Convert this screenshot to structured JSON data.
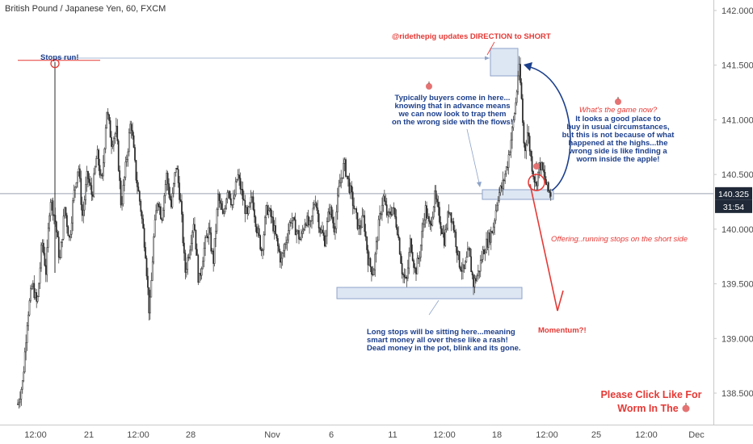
{
  "chart_data": {
    "type": "candlestick",
    "title": "British Pound / Japanese Yen, 60, FXCM",
    "y_ticks": [
      "142.000",
      "141.500",
      "141.000",
      "140.500",
      "140.000",
      "139.500",
      "139.000",
      "138.500"
    ],
    "y_tick_values": [
      142.0,
      141.5,
      141.0,
      140.5,
      140.0,
      139.5,
      139.0,
      138.5
    ],
    "ylim": [
      138.27,
      142.12
    ],
    "x_ticks": [
      "12:00",
      "21",
      "12:00",
      "28",
      "Nov",
      "6",
      "11",
      "12:00",
      "18",
      "12:00",
      "25",
      "12:00",
      "Dec"
    ],
    "price_label": "140.325",
    "price_value": 140.325,
    "countdown_label": "31:54",
    "path_points": [
      [
        0,
        138.4
      ],
      [
        6,
        138.6
      ],
      [
        12,
        139.2
      ],
      [
        18,
        139.5
      ],
      [
        24,
        139.3
      ],
      [
        30,
        139.9
      ],
      [
        35,
        139.6
      ],
      [
        40,
        140.3
      ],
      [
        46,
        140.1
      ],
      [
        52,
        139.7
      ],
      [
        58,
        140.2
      ],
      [
        64,
        139.9
      ],
      [
        69,
        140.3
      ],
      [
        75,
        140.6
      ],
      [
        80,
        140.1
      ],
      [
        86,
        140.5
      ],
      [
        92,
        140.3
      ],
      [
        98,
        140.7
      ],
      [
        104,
        140.4
      ],
      [
        110,
        141.1
      ],
      [
        116,
        140.8
      ],
      [
        122,
        140.9
      ],
      [
        128,
        140.2
      ],
      [
        134,
        140.6
      ],
      [
        140,
        141.0
      ],
      [
        146,
        140.5
      ],
      [
        152,
        140.2
      ],
      [
        158,
        139.8
      ],
      [
        163,
        139.2
      ],
      [
        168,
        139.9
      ],
      [
        173,
        140.3
      ],
      [
        178,
        140.1
      ],
      [
        184,
        140.5
      ],
      [
        190,
        140.2
      ],
      [
        196,
        140.6
      ],
      [
        202,
        140.2
      ],
      [
        207,
        139.6
      ],
      [
        212,
        139.8
      ],
      [
        218,
        140.1
      ],
      [
        224,
        139.5
      ],
      [
        230,
        139.8
      ],
      [
        236,
        140.0
      ],
      [
        242,
        139.7
      ],
      [
        248,
        140.3
      ],
      [
        254,
        140.1
      ],
      [
        260,
        140.4
      ],
      [
        266,
        140.2
      ],
      [
        272,
        140.5
      ],
      [
        278,
        140.3
      ],
      [
        284,
        140.1
      ],
      [
        290,
        140.3
      ],
      [
        296,
        140.0
      ],
      [
        302,
        139.8
      ],
      [
        308,
        140.2
      ],
      [
        314,
        140.1
      ],
      [
        320,
        139.9
      ],
      [
        326,
        139.7
      ],
      [
        332,
        139.9
      ],
      [
        338,
        140.1
      ],
      [
        344,
        140.0
      ],
      [
        350,
        139.9
      ],
      [
        356,
        140.1
      ],
      [
        362,
        140.0
      ],
      [
        368,
        140.3
      ],
      [
        374,
        140.0
      ],
      [
        380,
        139.9
      ],
      [
        386,
        140.2
      ],
      [
        392,
        140.0
      ],
      [
        398,
        140.4
      ],
      [
        404,
        140.6
      ],
      [
        410,
        140.4
      ],
      [
        416,
        140.2
      ],
      [
        422,
        140.0
      ],
      [
        428,
        140.1
      ],
      [
        434,
        139.7
      ],
      [
        440,
        139.6
      ],
      [
        446,
        140.0
      ],
      [
        452,
        140.3
      ],
      [
        458,
        140.1
      ],
      [
        464,
        140.2
      ],
      [
        470,
        140.0
      ],
      [
        476,
        139.6
      ],
      [
        481,
        139.5
      ],
      [
        486,
        139.9
      ],
      [
        492,
        139.6
      ],
      [
        498,
        139.8
      ],
      [
        504,
        140.2
      ],
      [
        510,
        140.0
      ],
      [
        516,
        140.3
      ],
      [
        522,
        140.1
      ],
      [
        528,
        139.9
      ],
      [
        534,
        140.2
      ],
      [
        540,
        140.0
      ],
      [
        546,
        139.7
      ],
      [
        552,
        139.6
      ],
      [
        558,
        139.8
      ],
      [
        564,
        139.5
      ],
      [
        570,
        139.6
      ],
      [
        576,
        139.8
      ],
      [
        582,
        139.9
      ],
      [
        588,
        140.0
      ],
      [
        594,
        140.3
      ],
      [
        600,
        140.4
      ],
      [
        606,
        140.6
      ],
      [
        612,
        140.9
      ],
      [
        617,
        141.2
      ],
      [
        620,
        141.5
      ],
      [
        623,
        141.25
      ],
      [
        627,
        140.7
      ],
      [
        631,
        140.9
      ],
      [
        636,
        140.6
      ],
      [
        641,
        140.4
      ],
      [
        646,
        140.6
      ],
      [
        651,
        140.5
      ],
      [
        656,
        140.35
      ],
      [
        660,
        140.325
      ]
    ],
    "stops_run_value": 141.5
  },
  "annotations": {
    "stops_run": "Stops run!",
    "direction_short": "@ridethepig updates DIRECTION to SHORT",
    "buyers": [
      "Typically buyers come in here...",
      "knowing that in advance means",
      "we can now look to trap them",
      "on the wrong side with the flows!"
    ],
    "game_question": "What's the game now?",
    "game_answer": [
      "It looks a good place to",
      "buy in usual circumstances,",
      "but this is not because of what",
      "happened at the highs...the",
      "wrong side is like finding a",
      "worm inside the apple!"
    ],
    "offering": "Offering..running stops on the short side",
    "long_stops": [
      "Long stops will be sitting here...meaning",
      "smart money all over these like a rash!",
      "Dead money in the pot, blink and its gone."
    ],
    "momentum": "Momentum?!",
    "cta_line1": "Please Click Like For",
    "cta_line2": "Worm In The"
  },
  "colors": {
    "candle": "#2b2b2b",
    "annotation_blue": "#1c3f8c",
    "annotation_red": "#e53935",
    "zone_fill": "#dde6f3",
    "zone_stroke": "#8ea3c8",
    "label_bg": "#1f2937"
  },
  "icons": [
    "apple-icon"
  ]
}
